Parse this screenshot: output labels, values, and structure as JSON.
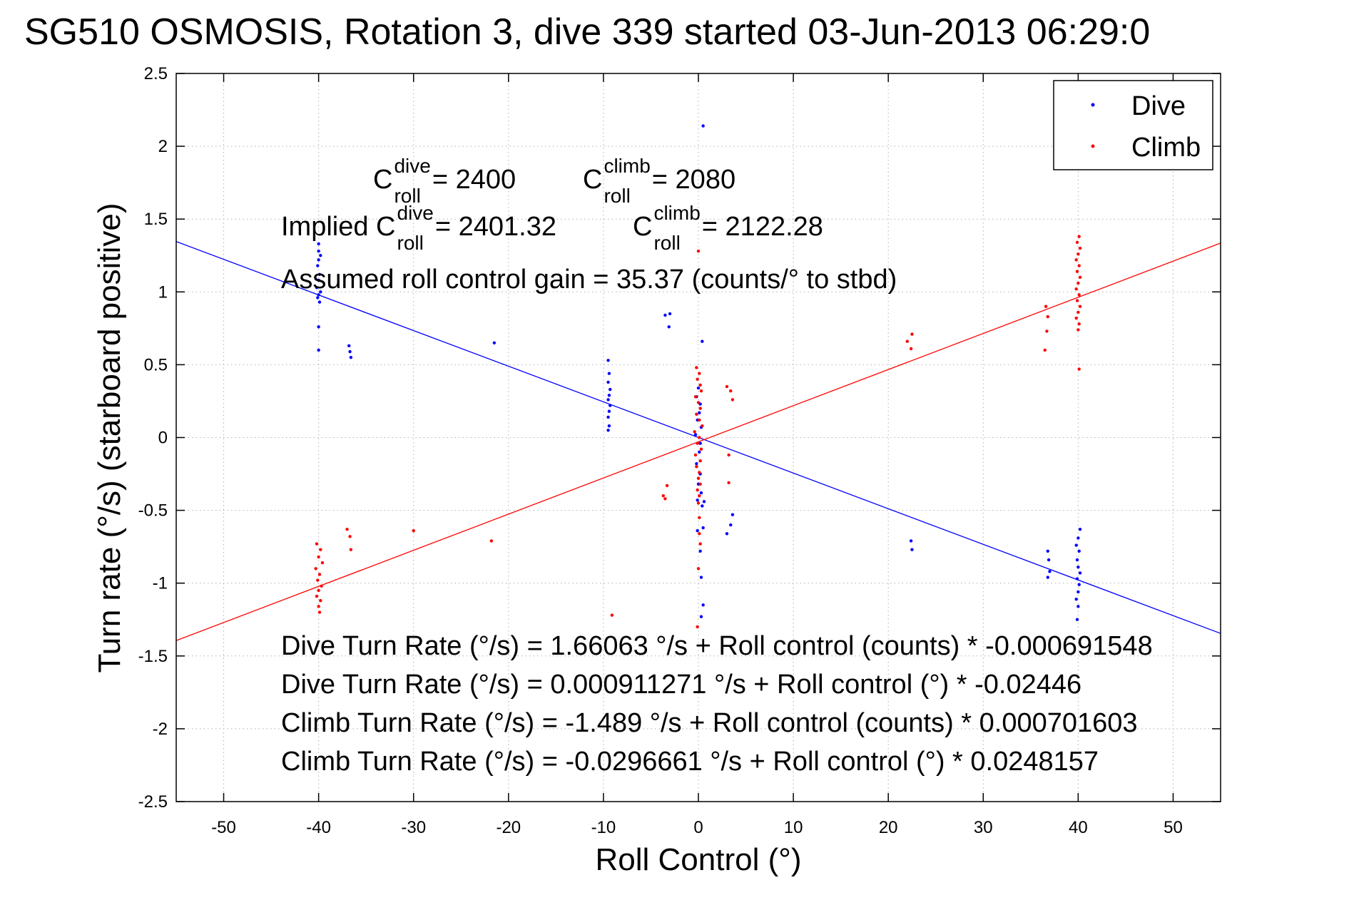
{
  "chart_data": {
    "type": "scatter",
    "title": "SG510 OSMOSIS, Rotation 3, dive 339 started 03-Jun-2013 06:29:0",
    "xlabel": "Roll Control (°)",
    "ylabel": "Turn rate (°/s)  (starboard positive)",
    "xlim": [
      -55,
      55
    ],
    "ylim": [
      -2.5,
      2.5
    ],
    "grid": true,
    "legend_position": "top-right",
    "xticks": [
      -50,
      -40,
      -30,
      -20,
      -10,
      0,
      10,
      20,
      30,
      40,
      50
    ],
    "yticks": [
      2.5,
      2,
      1.5,
      1,
      0.5,
      0,
      -0.5,
      -1,
      -1.5,
      -2,
      -2.5
    ],
    "colors": {
      "dive": "#0000ff",
      "climb": "#ff0000"
    },
    "series": [
      {
        "name": "Dive",
        "color": "#0000ff",
        "points": [
          [
            -40,
            1.33
          ],
          [
            -40,
            1.28
          ],
          [
            -39.8,
            1.25
          ],
          [
            -40,
            1.22
          ],
          [
            -40.1,
            1.18
          ],
          [
            -39.9,
            1.12
          ],
          [
            -40,
            1.08
          ],
          [
            -40.2,
            1.03
          ],
          [
            -39.8,
            1.0
          ],
          [
            -40,
            0.98
          ],
          [
            -40.1,
            0.96
          ],
          [
            -39.9,
            0.93
          ],
          [
            -40,
            0.76
          ],
          [
            -40,
            0.6
          ],
          [
            -36.8,
            0.63
          ],
          [
            -36.7,
            0.59
          ],
          [
            -36.6,
            0.55
          ],
          [
            -21.5,
            0.65
          ],
          [
            -9.5,
            0.53
          ],
          [
            -9.4,
            0.44
          ],
          [
            -9.5,
            0.38
          ],
          [
            -9.3,
            0.33
          ],
          [
            -9.4,
            0.29
          ],
          [
            -9.5,
            0.26
          ],
          [
            -9.3,
            0.22
          ],
          [
            -9.4,
            0.18
          ],
          [
            -9.5,
            0.14
          ],
          [
            -9.4,
            0.08
          ],
          [
            -9.5,
            0.05
          ],
          [
            -3.5,
            0.84
          ],
          [
            -3.0,
            0.85
          ],
          [
            -3.1,
            0.76
          ],
          [
            0.5,
            2.14
          ],
          [
            0.4,
            0.66
          ],
          [
            0,
            0.34
          ],
          [
            -0.2,
            0.28
          ],
          [
            0.2,
            0.23
          ],
          [
            0.1,
            0.17
          ],
          [
            -0.1,
            0.12
          ],
          [
            0.3,
            0.07
          ],
          [
            -0.3,
            0.02
          ],
          [
            0.2,
            -0.04
          ],
          [
            0.1,
            -0.1
          ],
          [
            -0.2,
            -0.18
          ],
          [
            0.2,
            -0.25
          ],
          [
            0,
            -0.32
          ],
          [
            0.3,
            -0.38
          ],
          [
            -0.1,
            -0.43
          ],
          [
            0.6,
            -0.44
          ],
          [
            0.4,
            -0.47
          ],
          [
            -0.1,
            -0.64
          ],
          [
            0.5,
            -0.62
          ],
          [
            0.2,
            -0.78
          ],
          [
            0.3,
            -0.96
          ],
          [
            0.5,
            -1.15
          ],
          [
            0.3,
            -1.23
          ],
          [
            3.0,
            -0.66
          ],
          [
            3.4,
            -0.6
          ],
          [
            3.6,
            -0.53
          ],
          [
            22.4,
            -0.71
          ],
          [
            22.5,
            -0.77
          ],
          [
            36.8,
            -0.78
          ],
          [
            36.9,
            -0.84
          ],
          [
            37.0,
            -0.92
          ],
          [
            36.8,
            -0.96
          ],
          [
            40.2,
            -0.63
          ],
          [
            40,
            -0.69
          ],
          [
            39.8,
            -0.74
          ],
          [
            40.1,
            -0.78
          ],
          [
            39.9,
            -0.84
          ],
          [
            40,
            -0.89
          ],
          [
            40.2,
            -0.93
          ],
          [
            39.9,
            -0.97
          ],
          [
            40.1,
            -1.01
          ],
          [
            40,
            -1.06
          ],
          [
            39.8,
            -1.11
          ],
          [
            40,
            -1.16
          ],
          [
            39.9,
            -1.25
          ]
        ]
      },
      {
        "name": "Climb",
        "color": "#ff0000",
        "points": [
          [
            -40.2,
            -0.73
          ],
          [
            -39.8,
            -0.77
          ],
          [
            -40,
            -0.82
          ],
          [
            -39.6,
            -0.86
          ],
          [
            -40.3,
            -0.9
          ],
          [
            -39.9,
            -0.94
          ],
          [
            -40.1,
            -0.98
          ],
          [
            -39.7,
            -1.02
          ],
          [
            -40,
            -1.05
          ],
          [
            -40.2,
            -1.09
          ],
          [
            -39.8,
            -1.12
          ],
          [
            -40,
            -1.16
          ],
          [
            -39.9,
            -1.2
          ],
          [
            -37,
            -0.63
          ],
          [
            -36.7,
            -0.68
          ],
          [
            -36.6,
            -0.77
          ],
          [
            -30,
            -0.64
          ],
          [
            -21.8,
            -0.71
          ],
          [
            -9.1,
            -1.22
          ],
          [
            -3.7,
            -0.4
          ],
          [
            -3.5,
            -0.42
          ],
          [
            -3.3,
            -0.33
          ],
          [
            3.0,
            0.35
          ],
          [
            3.4,
            0.32
          ],
          [
            3.6,
            0.26
          ],
          [
            3.2,
            -0.31
          ],
          [
            3.2,
            -0.12
          ],
          [
            0,
            1.28
          ],
          [
            -0.2,
            0.48
          ],
          [
            0.1,
            0.44
          ],
          [
            -0.1,
            0.4
          ],
          [
            0.2,
            0.36
          ],
          [
            0.3,
            0.32
          ],
          [
            -0.3,
            0.28
          ],
          [
            0,
            0.24
          ],
          [
            0.2,
            0.2
          ],
          [
            -0.2,
            0.16
          ],
          [
            0.1,
            0.12
          ],
          [
            0.4,
            0.08
          ],
          [
            -0.4,
            0.04
          ],
          [
            0.1,
            0.0
          ],
          [
            -0.1,
            -0.04
          ],
          [
            0.3,
            -0.08
          ],
          [
            -0.3,
            -0.12
          ],
          [
            0.2,
            -0.16
          ],
          [
            -0.2,
            -0.2
          ],
          [
            0.1,
            -0.24
          ],
          [
            0,
            -0.28
          ],
          [
            0.2,
            -0.32
          ],
          [
            -0.1,
            -0.36
          ],
          [
            0.1,
            -0.4
          ],
          [
            0,
            -0.45
          ],
          [
            0.1,
            -0.55
          ],
          [
            0.1,
            -0.66
          ],
          [
            0.2,
            -0.73
          ],
          [
            0,
            -0.9
          ],
          [
            -0.1,
            -1.3
          ],
          [
            22,
            0.66
          ],
          [
            22.4,
            0.61
          ],
          [
            22.5,
            0.71
          ],
          [
            36.6,
            0.9
          ],
          [
            36.8,
            0.83
          ],
          [
            36.7,
            0.73
          ],
          [
            36.5,
            0.6
          ],
          [
            40.1,
            1.38
          ],
          [
            39.9,
            1.34
          ],
          [
            40.2,
            1.3
          ],
          [
            40,
            1.26
          ],
          [
            39.8,
            1.22
          ],
          [
            40.1,
            1.18
          ],
          [
            39.9,
            1.14
          ],
          [
            40.2,
            1.1
          ],
          [
            40,
            1.06
          ],
          [
            39.8,
            1.02
          ],
          [
            40.1,
            0.98
          ],
          [
            39.9,
            0.94
          ],
          [
            40.2,
            0.9
          ],
          [
            40,
            0.86
          ],
          [
            39.8,
            0.82
          ],
          [
            40.1,
            0.78
          ],
          [
            40,
            0.74
          ],
          [
            40.1,
            0.47
          ]
        ]
      }
    ],
    "fit_lines": [
      {
        "series": "Dive",
        "color": "#0000ff",
        "x": [
          -55,
          55
        ],
        "y": [
          1.346,
          -1.3452
        ]
      },
      {
        "series": "Climb",
        "color": "#ff0000",
        "x": [
          -55,
          55
        ],
        "y": [
          -1.3945,
          1.3352
        ]
      }
    ],
    "annotations": {
      "line1": [
        {
          "kind": "c",
          "base": "C",
          "sup": "dive",
          "sub": "roll",
          "after": " = 2400"
        },
        {
          "kind": "c",
          "base": "C",
          "sup": "climb",
          "sub": "roll",
          "after": " = 2080"
        }
      ],
      "line2": [
        {
          "kind": "c",
          "base": "Implied C",
          "sup": "dive",
          "sub": "roll",
          "after": " = 2401.32"
        },
        {
          "kind": "c",
          "base": "C",
          "sup": "climb",
          "sub": "roll",
          "after": " = 2122.28"
        }
      ],
      "gain": "Assumed roll control gain = 35.37 (counts/° to stbd)",
      "fits": [
        "Dive Turn Rate (°/s) = 1.66063 °/s + Roll control (counts) * -0.000691548",
        "Dive Turn Rate (°/s) = 0.000911271 °/s + Roll control (°) * -0.02446",
        "Climb Turn Rate (°/s) = -1.489 °/s + Roll control (counts) * 0.000701603",
        "Climb Turn Rate (°/s) = -0.0296661 °/s + Roll control (°) * 0.0248157"
      ]
    }
  }
}
